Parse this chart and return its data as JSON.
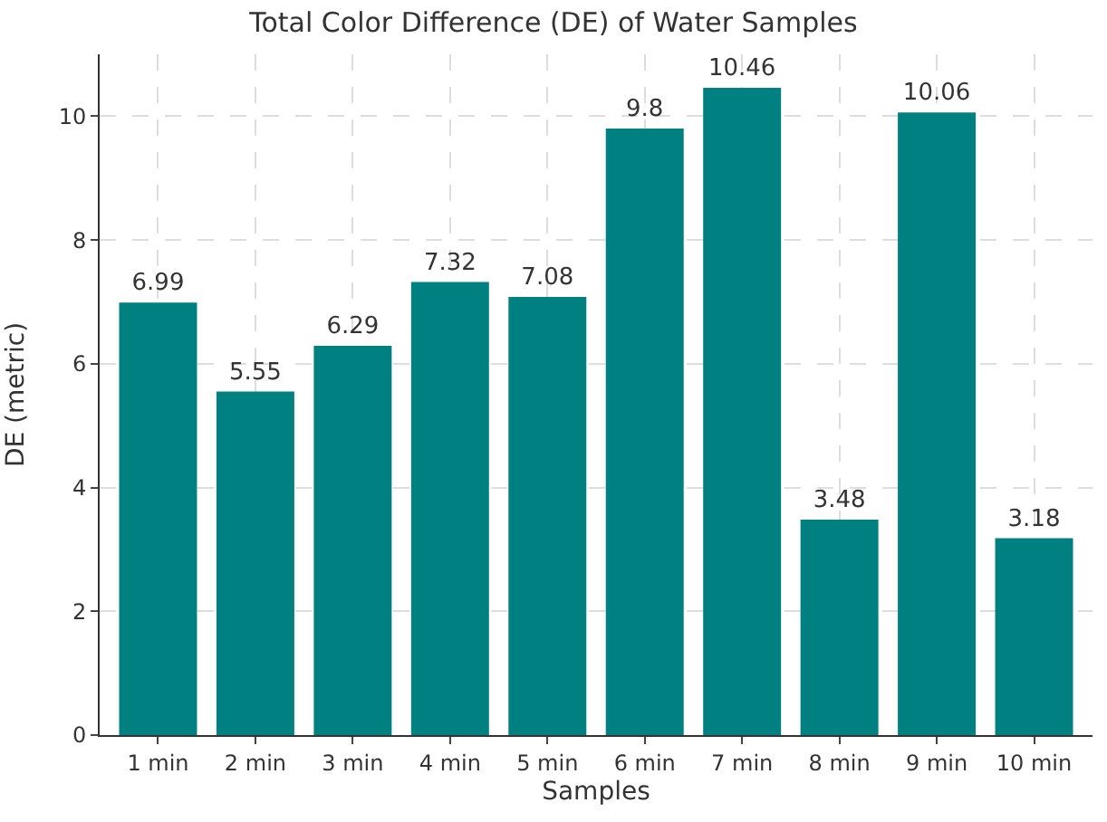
{
  "chart_data": {
    "type": "bar",
    "title": "Total Color Difference (DE) of Water Samples",
    "xlabel": "Samples",
    "ylabel": "DE (metric)",
    "categories": [
      "1 min",
      "2 min",
      "3 min",
      "4 min",
      "5 min",
      "6 min",
      "7 min",
      "8 min",
      "9 min",
      "10 min"
    ],
    "values": [
      6.99,
      5.55,
      6.29,
      7.32,
      7.08,
      9.8,
      10.46,
      3.48,
      10.06,
      3.18
    ],
    "color": "#008080",
    "ylim": [
      0,
      11
    ],
    "yticks": [
      0,
      2,
      4,
      6,
      8,
      10
    ],
    "grid": true,
    "data_labels": true
  }
}
